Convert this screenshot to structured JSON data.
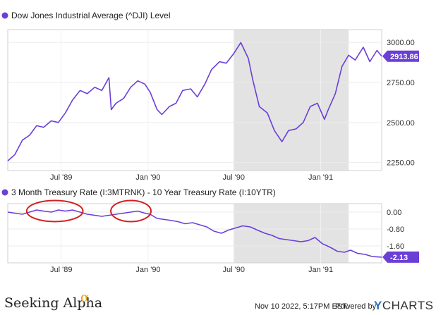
{
  "footer": {
    "source": "Seeking Alpha",
    "source_mark": "α",
    "timestamp": "Nov 10 2022, 5:17PM EST.",
    "powered_by": "Powered by",
    "brand_y": "Y",
    "brand_rest": "CHARTS",
    "accent_color": "#6b3fd6",
    "alpha_color": "#e0a31a"
  },
  "chart_data": [
    {
      "type": "line",
      "title": "Dow Jones Industrial Average (^DJI) Level",
      "color": "#6b3fd6",
      "ylim": [
        2200,
        3080
      ],
      "ytick_labels": [
        "3000.00",
        "2750.00",
        "2500.00",
        "2250.00"
      ],
      "ytick_values": [
        3000,
        2750,
        2500,
        2250
      ],
      "xtick_labels": [
        "Jul '89",
        "Jan '90",
        "Jul '90",
        "Jan '91"
      ],
      "xlim": [
        "1989-03-10",
        "1991-05-10"
      ],
      "x_dates": [
        "1989-07-01",
        "1990-01-01",
        "1990-07-01",
        "1991-01-01"
      ],
      "recession_shading": [
        "1990-07-01",
        "1991-03-01"
      ],
      "last_value_label": "2913.86",
      "x": [
        "1989-03-10",
        "1989-03-25",
        "1989-04-10",
        "1989-04-25",
        "1989-05-10",
        "1989-05-25",
        "1989-06-10",
        "1989-06-25",
        "1989-07-10",
        "1989-07-25",
        "1989-08-10",
        "1989-08-25",
        "1989-09-10",
        "1989-09-25",
        "1989-10-10",
        "1989-10-15",
        "1989-10-25",
        "1989-11-10",
        "1989-11-25",
        "1989-12-10",
        "1989-12-25",
        "1990-01-05",
        "1990-01-20",
        "1990-01-30",
        "1990-02-15",
        "1990-03-01",
        "1990-03-15",
        "1990-04-01",
        "1990-04-15",
        "1990-05-01",
        "1990-05-15",
        "1990-06-01",
        "1990-06-15",
        "1990-07-01",
        "1990-07-16",
        "1990-08-01",
        "1990-08-10",
        "1990-08-24",
        "1990-09-10",
        "1990-09-25",
        "1990-10-11",
        "1990-10-25",
        "1990-11-10",
        "1990-11-25",
        "1990-12-10",
        "1990-12-25",
        "1991-01-09",
        "1991-01-17",
        "1991-02-01",
        "1991-02-15",
        "1991-03-01",
        "1991-03-15",
        "1991-04-01",
        "1991-04-15",
        "1991-04-30",
        "1991-05-10"
      ],
      "y": [
        2260,
        2300,
        2390,
        2420,
        2480,
        2470,
        2510,
        2500,
        2560,
        2640,
        2700,
        2680,
        2720,
        2700,
        2780,
        2580,
        2620,
        2650,
        2720,
        2760,
        2740,
        2690,
        2580,
        2550,
        2600,
        2620,
        2700,
        2710,
        2660,
        2740,
        2830,
        2880,
        2870,
        2930,
        2999,
        2900,
        2770,
        2600,
        2560,
        2450,
        2380,
        2450,
        2460,
        2500,
        2600,
        2620,
        2520,
        2580,
        2680,
        2850,
        2920,
        2890,
        2970,
        2880,
        2950,
        2913.86
      ]
    },
    {
      "type": "line",
      "title": "3 Month Treasury Rate (I:3MTRNK) - 10 Year Treasury Rate (I:10YTR)",
      "color": "#6b3fd6",
      "ylim": [
        -2.4,
        0.4
      ],
      "ytick_labels": [
        "0.00",
        "-0.80",
        "-1.60"
      ],
      "ytick_values": [
        0,
        -0.8,
        -1.6
      ],
      "xtick_labels": [
        "Jul '89",
        "Jan '90",
        "Jul '90",
        "Jan '91"
      ],
      "xlim": [
        "1989-03-10",
        "1991-05-10"
      ],
      "x_dates": [
        "1989-07-01",
        "1990-01-01",
        "1990-07-01",
        "1991-01-01"
      ],
      "recession_shading": [
        "1990-07-01",
        "1991-03-01"
      ],
      "highlight_circles": [
        [
          "1989-04-25",
          "1989-08-10"
        ],
        [
          "1989-10-20",
          "1990-01-01"
        ]
      ],
      "highlight_color": "#d42020",
      "last_value_label": "-2.13",
      "x": [
        "1989-03-10",
        "1989-03-25",
        "1989-04-10",
        "1989-04-25",
        "1989-05-10",
        "1989-05-25",
        "1989-06-10",
        "1989-06-25",
        "1989-07-10",
        "1989-07-25",
        "1989-08-10",
        "1989-08-25",
        "1989-09-10",
        "1989-09-25",
        "1989-10-10",
        "1989-10-25",
        "1989-11-10",
        "1989-11-25",
        "1989-12-10",
        "1989-12-25",
        "1990-01-05",
        "1990-01-20",
        "1990-02-05",
        "1990-02-20",
        "1990-03-05",
        "1990-03-20",
        "1990-04-05",
        "1990-04-20",
        "1990-05-05",
        "1990-05-20",
        "1990-06-05",
        "1990-06-20",
        "1990-07-05",
        "1990-07-20",
        "1990-08-05",
        "1990-08-20",
        "1990-09-05",
        "1990-09-20",
        "1990-10-05",
        "1990-10-20",
        "1990-11-05",
        "1990-11-20",
        "1990-12-05",
        "1990-12-20",
        "1991-01-05",
        "1991-01-20",
        "1991-02-05",
        "1991-02-20",
        "1991-03-05",
        "1991-03-20",
        "1991-04-05",
        "1991-04-20",
        "1991-05-10"
      ],
      "y": [
        0.0,
        -0.05,
        -0.1,
        0.0,
        0.1,
        0.05,
        0.0,
        0.1,
        0.05,
        0.1,
        0.0,
        -0.1,
        -0.15,
        -0.2,
        -0.15,
        -0.1,
        -0.05,
        0.0,
        0.05,
        -0.05,
        -0.1,
        -0.3,
        -0.35,
        -0.4,
        -0.45,
        -0.55,
        -0.5,
        -0.6,
        -0.7,
        -0.9,
        -1.0,
        -0.85,
        -0.75,
        -0.65,
        -0.7,
        -0.85,
        -1.0,
        -1.1,
        -1.25,
        -1.3,
        -1.35,
        -1.4,
        -1.35,
        -1.2,
        -1.5,
        -1.65,
        -1.85,
        -1.9,
        -1.8,
        -1.95,
        -2.0,
        -2.1,
        -2.13
      ]
    }
  ]
}
